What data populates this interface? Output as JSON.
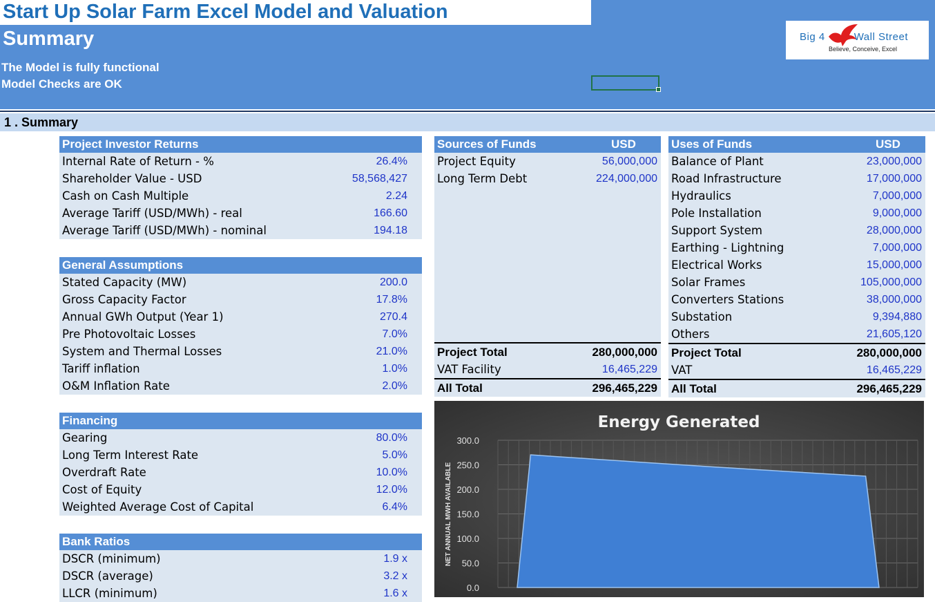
{
  "header": {
    "app_title": "Start Up Solar Farm Excel Model and Valuation",
    "sheet_title": "Summary",
    "status_1": "The Model is fully functional",
    "status_2": "Model Checks are OK",
    "logo_brand_left": "Big 4",
    "logo_brand_right": "Wall Street",
    "logo_tagline": "Believe, Conceive, Excel"
  },
  "section": {
    "title": "1 . Summary"
  },
  "investor_returns": {
    "heading": "Project Investor Returns",
    "rows": [
      {
        "label": "Internal Rate of Return - %",
        "value": "26.4%"
      },
      {
        "label": "Shareholder Value - USD",
        "value": "58,568,427"
      },
      {
        "label": "Cash on Cash Multiple",
        "value": "2.24"
      },
      {
        "label": "Average Tariff (USD/MWh) - real",
        "value": "166.60"
      },
      {
        "label": "Average Tariff (USD/MWh) - nominal",
        "value": "194.18"
      }
    ]
  },
  "general_assumptions": {
    "heading": "General Assumptions",
    "rows": [
      {
        "label": "Stated Capacity (MW)",
        "value": "200.0"
      },
      {
        "label": "Gross Capacity Factor",
        "value": "17.8%"
      },
      {
        "label": "Annual GWh Output (Year 1)",
        "value": "270.4"
      },
      {
        "label": "Pre Photovoltaic Losses",
        "value": "7.0%"
      },
      {
        "label": "System and Thermal Losses",
        "value": "21.0%"
      },
      {
        "label": "Tariff inflation",
        "value": "1.0%"
      },
      {
        "label": "O&M Inflation Rate",
        "value": "2.0%"
      }
    ]
  },
  "financing": {
    "heading": "Financing",
    "rows": [
      {
        "label": "Gearing",
        "value": "80.0%"
      },
      {
        "label": "Long Term Interest Rate",
        "value": "5.0%"
      },
      {
        "label": "Overdraft Rate",
        "value": "10.0%"
      },
      {
        "label": "Cost of Equity",
        "value": "12.0%"
      },
      {
        "label": "Weighted Average Cost of Capital",
        "value": "6.4%"
      }
    ]
  },
  "bank_ratios": {
    "heading": "Bank Ratios",
    "rows": [
      {
        "label": "DSCR (minimum)",
        "value": "1.9 x"
      },
      {
        "label": "DSCR (average)",
        "value": "3.2 x"
      },
      {
        "label": "LLCR (minimum)",
        "value": "1.6 x"
      }
    ]
  },
  "sources": {
    "heading": "Sources of Funds",
    "currency": "USD",
    "rows": [
      {
        "label": "Project Equity",
        "value": "56,000,000"
      },
      {
        "label": "Long Term Debt",
        "value": "224,000,000"
      }
    ],
    "project_total": {
      "label": "Project Total",
      "value": "280,000,000"
    },
    "vat": {
      "label": "VAT Facility",
      "value": "16,465,229"
    },
    "all_total": {
      "label": "All Total",
      "value": "296,465,229"
    }
  },
  "uses": {
    "heading": "Uses of Funds",
    "currency": "USD",
    "rows": [
      {
        "label": "Balance of Plant",
        "value": "23,000,000"
      },
      {
        "label": "Road Infrastructure",
        "value": "17,000,000"
      },
      {
        "label": "Hydraulics",
        "value": "7,000,000"
      },
      {
        "label": "Pole Installation",
        "value": "9,000,000"
      },
      {
        "label": "Support System",
        "value": "28,000,000"
      },
      {
        "label": "Earthing - Lightning",
        "value": "7,000,000"
      },
      {
        "label": "Electrical Works",
        "value": "15,000,000"
      },
      {
        "label": "Solar Frames",
        "value": "105,000,000"
      },
      {
        "label": "Converters Stations",
        "value": "38,000,000"
      },
      {
        "label": "Substation",
        "value": "9,394,880"
      },
      {
        "label": "Others",
        "value": "21,605,120"
      }
    ],
    "project_total": {
      "label": "Project Total",
      "value": "280,000,000"
    },
    "vat": {
      "label": "VAT",
      "value": "16,465,229"
    },
    "all_total": {
      "label": "All Total",
      "value": "296,465,229"
    }
  },
  "chart_data": {
    "type": "area",
    "title": "Energy Generated",
    "ylabel": "NET ANNUAL MWH AVAILABLE",
    "xlabel": "",
    "ylim": [
      0,
      300
    ],
    "yticks": [
      "300.0",
      "250.0",
      "200.0",
      "150.0",
      "100.0",
      "50.0",
      "0.0"
    ],
    "x": [
      0,
      1,
      2,
      3,
      4,
      5,
      6,
      7,
      8,
      9,
      10,
      11,
      12,
      13,
      14,
      15,
      16,
      17,
      18,
      19,
      20,
      21,
      22,
      23,
      24,
      25,
      26,
      27
    ],
    "values": [
      0,
      270.4,
      268.5,
      266.6,
      264.8,
      263.0,
      261.1,
      259.3,
      257.5,
      255.7,
      253.9,
      252.1,
      250.3,
      248.6,
      246.8,
      245.1,
      243.4,
      241.7,
      240.0,
      238.3,
      236.6,
      235.0,
      233.3,
      231.7,
      230.1,
      228.5,
      226.9,
      0
    ],
    "grid": true,
    "fill_color": "#3F7FD4"
  }
}
